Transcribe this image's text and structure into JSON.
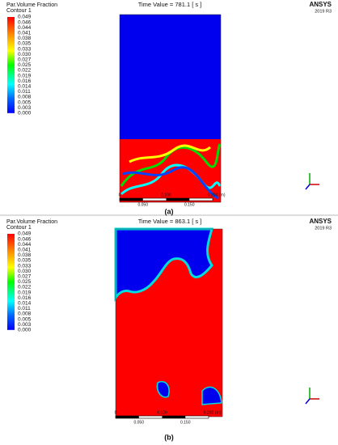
{
  "panels": [
    {
      "legend_title": "Par.Volume Fraction",
      "legend_subtitle": "Contour 1",
      "legend_labels": [
        "0.049",
        "0.046",
        "0.044",
        "0.041",
        "0.038",
        "0.035",
        "0.033",
        "0.030",
        "0.027",
        "0.025",
        "0.022",
        "0.019",
        "0.016",
        "0.014",
        "0.011",
        "0.008",
        "0.005",
        "0.003",
        "0.000"
      ],
      "time_label": "Time Value = 781.1 [ s ]",
      "logo": "ANSYS",
      "version": "2019 R3",
      "scale_top": [
        "0",
        "0.100",
        "0.200"
      ],
      "scale_unit": "(m)",
      "scale_bottom": [
        "0.050",
        "0.150"
      ],
      "caption": "(a)"
    },
    {
      "legend_title": "Par.Volume Fraction",
      "legend_subtitle": "Contour 1",
      "legend_labels": [
        "0.049",
        "0.046",
        "0.044",
        "0.041",
        "0.038",
        "0.035",
        "0.033",
        "0.030",
        "0.027",
        "0.025",
        "0.022",
        "0.019",
        "0.016",
        "0.014",
        "0.011",
        "0.008",
        "0.005",
        "0.003",
        "0.000"
      ],
      "time_label": "Time Value = 863.1 [ s ]",
      "logo": "ANSYS",
      "version": "2019 R3",
      "scale_top": [
        "0",
        "0.100",
        "0.200"
      ],
      "scale_unit": "(m)",
      "scale_bottom": [
        "0.050",
        "0.150"
      ],
      "caption": "(b)"
    }
  ]
}
